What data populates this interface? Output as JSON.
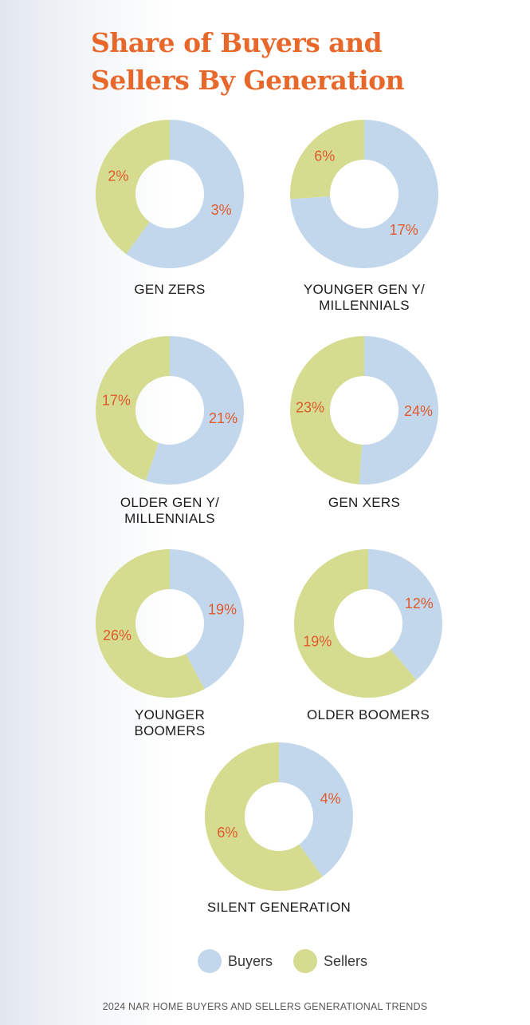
{
  "title_lines": [
    "Share of Buyers and",
    "Sellers By Generation"
  ],
  "source": "2024 NAR HOME BUYERS AND SELLERS GENERATIONAL TRENDS",
  "colors": {
    "buyers": "#c3d7ec",
    "sellers": "#d5dc90",
    "title": "#e8682c",
    "values": "#e05a2c"
  },
  "chart_data": {
    "type": "pie",
    "series_names": [
      "Buyers",
      "Sellers"
    ],
    "charts": [
      {
        "label_lines": [
          "GEN ZERS"
        ],
        "buyers": 3,
        "sellers": 2,
        "buyers_label": "3%",
        "sellers_label": "2%"
      },
      {
        "label_lines": [
          "YOUNGER GEN Y/",
          "MILLENNIALS"
        ],
        "buyers": 17,
        "sellers": 6,
        "buyers_label": "17%",
        "sellers_label": "6%"
      },
      {
        "label_lines": [
          "OLDER GEN Y/",
          "MILLENNIALS"
        ],
        "buyers": 21,
        "sellers": 17,
        "buyers_label": "21%",
        "sellers_label": "17%"
      },
      {
        "label_lines": [
          "GEN XERS"
        ],
        "buyers": 24,
        "sellers": 23,
        "buyers_label": "24%",
        "sellers_label": "23%"
      },
      {
        "label_lines": [
          "YOUNGER",
          "BOOMERS"
        ],
        "buyers": 19,
        "sellers": 26,
        "buyers_label": "19%",
        "sellers_label": "26%"
      },
      {
        "label_lines": [
          "OLDER BOOMERS"
        ],
        "buyers": 12,
        "sellers": 19,
        "buyers_label": "12%",
        "sellers_label": "19%"
      },
      {
        "label_lines": [
          "SILENT GENERATION"
        ],
        "buyers": 4,
        "sellers": 6,
        "buyers_label": "4%",
        "sellers_label": "6%"
      }
    ]
  },
  "legend": {
    "buyers_label": "Buyers",
    "sellers_label": "Sellers"
  }
}
